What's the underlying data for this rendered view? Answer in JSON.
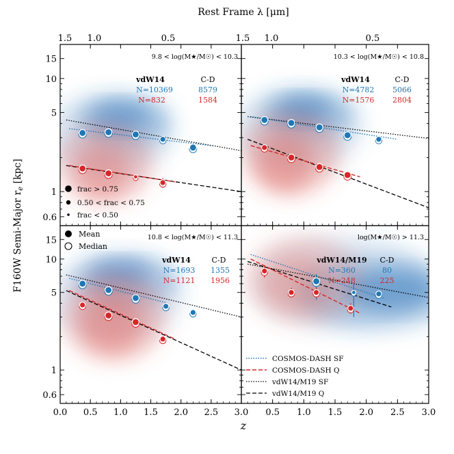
{
  "figure": {
    "top_axis_title": "Rest Frame λ [μm]",
    "ylabel": "F160W Semi-Major r",
    "ylabel_sub": "e",
    "ylabel_unit": " [kpc]",
    "xlabel": "z",
    "x_tick_labels": [
      "0.0",
      "0.5",
      "1.0",
      "1.5",
      "2.0",
      "2.5",
      "3.0"
    ],
    "y_tick_labels": [
      "0.6",
      "1",
      "5",
      "10",
      "15"
    ],
    "top_tick_labels": [
      "1.5",
      "1.0",
      "0.5"
    ],
    "colors": {
      "sf": "#1f77b4",
      "q": "#d62728",
      "model": "#000000"
    }
  },
  "legends": {
    "frac_title": "",
    "frac_items": [
      "frac > 0.75",
      "0.50 < frac < 0.75",
      "frac < 0.50"
    ],
    "stat_items": [
      "Mean",
      "Median"
    ],
    "line_items": [
      "COSMOS-DASH SF",
      "COSMOS-DASH Q",
      "vdW14/M19 SF",
      "vdW14/M19 Q"
    ]
  },
  "chart_data": [
    {
      "type": "scatter",
      "panel": "top-left",
      "mass_bin": "9.8 < log(M★/M☉) < 10.3",
      "count_header": {
        "ref": "vdW14",
        "cd": "C-D"
      },
      "counts": {
        "sf_ref": "N=10369",
        "sf_cd": "8579",
        "q_ref": "N=832",
        "q_cd": "1584"
      },
      "xlim": [
        0,
        3
      ],
      "ylim_log": [
        0.5,
        20
      ],
      "sf_points": [
        {
          "z": 0.37,
          "re": 3.3,
          "size": "large"
        },
        {
          "z": 0.8,
          "re": 3.35,
          "size": "large"
        },
        {
          "z": 1.25,
          "re": 3.2,
          "size": "large"
        },
        {
          "z": 1.7,
          "re": 2.9,
          "size": "medium"
        },
        {
          "z": 2.2,
          "re": 2.45,
          "size": "large"
        }
      ],
      "q_points": [
        {
          "z": 0.37,
          "re": 1.6,
          "size": "large",
          "err": [
            0.1,
            0.1
          ]
        },
        {
          "z": 0.8,
          "re": 1.45,
          "size": "large"
        },
        {
          "z": 1.25,
          "re": 1.35,
          "size": "small"
        },
        {
          "z": 1.7,
          "re": 1.2,
          "size": "medium",
          "err": [
            0.12,
            0.12
          ]
        }
      ],
      "sf_fit": {
        "z": [
          0.15,
          2.5
        ],
        "re": [
          3.6,
          2.55
        ]
      },
      "q_fit": {
        "z": [
          0.15,
          1.9
        ],
        "re": [
          1.7,
          1.22
        ]
      },
      "sf_model": {
        "z": [
          0.1,
          3.0
        ],
        "re": [
          4.3,
          2.3
        ]
      },
      "q_model": {
        "z": [
          0.1,
          3.0
        ],
        "re": [
          1.7,
          1.0
        ]
      }
    },
    {
      "type": "scatter",
      "panel": "top-right",
      "mass_bin": "10.3 < log(M★/M☉) < 10.8",
      "count_header": {
        "ref": "vdW14",
        "cd": "C-D"
      },
      "counts": {
        "sf_ref": "N=4782",
        "sf_cd": "5066",
        "q_ref": "N=1576",
        "q_cd": "2804"
      },
      "xlim": [
        0,
        3
      ],
      "ylim_log": [
        0.5,
        20
      ],
      "sf_points": [
        {
          "z": 0.37,
          "re": 4.3,
          "size": "large"
        },
        {
          "z": 0.8,
          "re": 4.05,
          "size": "large"
        },
        {
          "z": 1.25,
          "re": 3.7,
          "size": "large"
        },
        {
          "z": 1.7,
          "re": 3.15,
          "size": "large"
        },
        {
          "z": 2.2,
          "re": 2.9,
          "size": "medium"
        }
      ],
      "q_points": [
        {
          "z": 0.37,
          "re": 2.45,
          "size": "medium"
        },
        {
          "z": 0.8,
          "re": 2.0,
          "size": "large"
        },
        {
          "z": 1.25,
          "re": 1.65,
          "size": "large"
        },
        {
          "z": 1.7,
          "re": 1.4,
          "size": "large"
        }
      ],
      "sf_fit": {
        "z": [
          0.15,
          2.5
        ],
        "re": [
          4.6,
          2.9
        ]
      },
      "q_fit": {
        "z": [
          0.15,
          1.9
        ],
        "re": [
          2.55,
          1.35
        ]
      },
      "sf_model": {
        "z": [
          0.1,
          3.0
        ],
        "re": [
          4.6,
          2.95
        ]
      },
      "q_model": {
        "z": [
          0.1,
          3.0
        ],
        "re": [
          2.9,
          0.72
        ]
      }
    },
    {
      "type": "scatter",
      "panel": "bottom-left",
      "mass_bin": "10.8 < log(M★/M☉) < 11.3",
      "count_header": {
        "ref": "vdW14",
        "cd": "C-D"
      },
      "counts": {
        "sf_ref": "N=1693",
        "sf_cd": "1355",
        "q_ref": "N=1121",
        "q_cd": "1956"
      },
      "xlim": [
        0,
        3
      ],
      "ylim_log": [
        0.5,
        20
      ],
      "sf_points": [
        {
          "z": 0.37,
          "re": 6.0,
          "size": "large"
        },
        {
          "z": 0.8,
          "re": 5.25,
          "size": "large"
        },
        {
          "z": 1.25,
          "re": 4.45,
          "size": "large"
        },
        {
          "z": 1.75,
          "re": 3.75,
          "size": "medium"
        },
        {
          "z": 2.2,
          "re": 3.3,
          "size": "medium"
        }
      ],
      "q_points": [
        {
          "z": 0.37,
          "re": 3.85,
          "size": "medium"
        },
        {
          "z": 0.8,
          "re": 3.1,
          "size": "large"
        },
        {
          "z": 1.25,
          "re": 2.7,
          "size": "large"
        },
        {
          "z": 1.7,
          "re": 1.9,
          "size": "medium"
        }
      ],
      "sf_fit": {
        "z": [
          0.15,
          1.75
        ],
        "re": [
          6.7,
          4.05
        ]
      },
      "q_fit": {
        "z": [
          0.15,
          1.9
        ],
        "re": [
          5.2,
          1.9
        ]
      },
      "sf_model": {
        "z": [
          0.1,
          3.0
        ],
        "re": [
          7.2,
          3.0
        ]
      },
      "q_model": {
        "z": [
          0.1,
          3.0
        ],
        "re": [
          5.2,
          1.0
        ]
      }
    },
    {
      "type": "scatter",
      "panel": "bottom-right",
      "mass_bin": "log(M★/M☉) > 11.3",
      "count_header": {
        "ref": "vdW14/M19",
        "cd": "C-D"
      },
      "counts": {
        "sf_ref": "N=360",
        "sf_cd": "80",
        "q_ref": "N=248",
        "q_cd": "225"
      },
      "xlim": [
        0,
        3
      ],
      "ylim_log": [
        0.5,
        20
      ],
      "sf_points": [
        {
          "z": 1.2,
          "re": 6.3,
          "size": "large",
          "err": [
            2.0,
            1.0
          ]
        },
        {
          "z": 1.8,
          "re": 5.0,
          "size": "small",
          "err": [
            2.0,
            1.0
          ]
        },
        {
          "z": 2.2,
          "re": 4.85,
          "size": "medium"
        }
      ],
      "q_points": [
        {
          "z": 0.37,
          "re": 7.8,
          "size": "medium",
          "err": [
            1.0,
            1.0
          ]
        },
        {
          "z": 0.8,
          "re": 5.0,
          "size": "medium",
          "err": [
            0.5,
            0.5
          ]
        },
        {
          "z": 1.2,
          "re": 5.0,
          "size": "medium",
          "err": [
            0.5,
            0.5
          ]
        },
        {
          "z": 1.75,
          "re": 3.6,
          "size": "medium",
          "err": [
            0.4,
            0.4
          ]
        }
      ],
      "sf_fit": {
        "z": [
          0.15,
          2.3
        ],
        "re": [
          11.0,
          4.4
        ]
      },
      "q_fit": {
        "z": [
          0.15,
          1.9
        ],
        "re": [
          10.0,
          3.25
        ]
      },
      "sf_model": {
        "z": [
          0.1,
          3.0
        ],
        "re": [
          9.0,
          4.5
        ]
      },
      "q_model": {
        "z": [
          0.1,
          2.4
        ],
        "re": [
          9.5,
          3.7
        ]
      }
    }
  ]
}
